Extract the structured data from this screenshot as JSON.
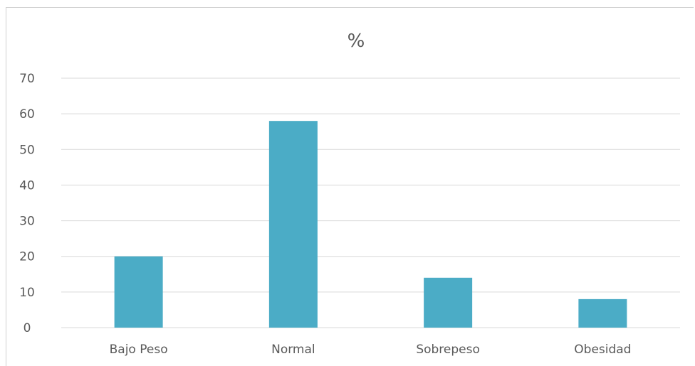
{
  "chart_data": {
    "type": "bar",
    "title": "%",
    "xlabel": "",
    "ylabel": "",
    "categories": [
      "Bajo Peso",
      "Normal",
      "Sobrepeso",
      "Obesidad"
    ],
    "values": [
      20,
      58,
      14,
      8
    ],
    "ylim": [
      0,
      70
    ],
    "yticks": [
      "0",
      "10",
      "20",
      "30",
      "40",
      "50",
      "60",
      "70"
    ],
    "grid": true,
    "legend": "none",
    "bar_color": "#4BACC6"
  }
}
